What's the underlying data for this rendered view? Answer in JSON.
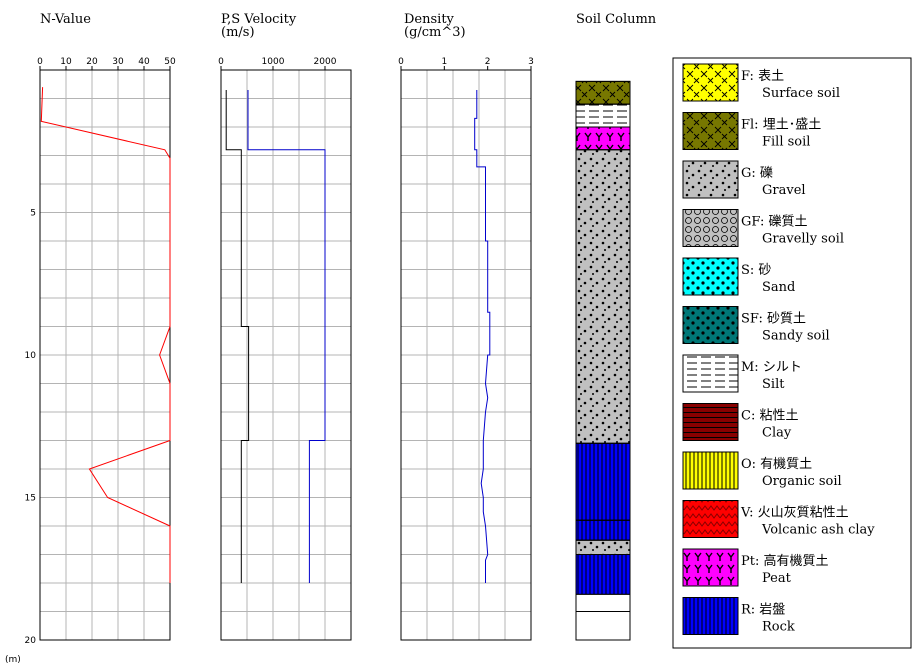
{
  "chart_data": {
    "type": "line",
    "depth_axis": {
      "ylim": [
        0,
        20
      ],
      "ticks": [
        "5",
        "10",
        "15",
        "20"
      ],
      "unit": "(m)"
    },
    "panels": [
      {
        "id": "nvalue",
        "title": [
          "N-Value"
        ],
        "xlim": [
          0,
          50
        ],
        "ticks": [
          "0",
          "10",
          "20",
          "30",
          "40",
          "50"
        ],
        "series": [
          {
            "color": "#ff0000",
            "points": [
              [
                1,
                0.6
              ],
              [
                0.5,
                1.8
              ],
              [
                48,
                2.8
              ],
              [
                50,
                3.1
              ],
              [
                50,
                9
              ],
              [
                46,
                10
              ],
              [
                50,
                11
              ],
              [
                50,
                13
              ],
              [
                19,
                14
              ],
              [
                26,
                15
              ],
              [
                50,
                16
              ],
              [
                50,
                18
              ]
            ]
          }
        ]
      },
      {
        "id": "velocity",
        "title": [
          "P,S Velocity",
          "(m/s)"
        ],
        "xlim": [
          0,
          2500
        ],
        "ticks": [
          "0",
          "1000",
          "2000"
        ],
        "series": [
          {
            "name_hidden": "Vs",
            "color": "#000000",
            "points": [
              [
                100,
                0.7
              ],
              [
                100,
                2.8
              ],
              [
                390,
                2.8
              ],
              [
                390,
                9
              ],
              [
                530,
                9
              ],
              [
                530,
                13
              ],
              [
                390,
                13
              ],
              [
                390,
                18
              ]
            ]
          },
          {
            "name_hidden": "Vp",
            "color": "#0000cc",
            "points": [
              [
                520,
                0.7
              ],
              [
                520,
                2.8
              ],
              [
                2000,
                2.8
              ],
              [
                2000,
                13
              ],
              [
                1700,
                13
              ],
              [
                1700,
                18
              ]
            ]
          }
        ]
      },
      {
        "id": "density",
        "title": [
          "Density",
          "(g/cm^3)"
        ],
        "xlim": [
          0,
          3
        ],
        "ticks": [
          "0",
          "1",
          "2",
          "3"
        ],
        "series": [
          {
            "color": "#0000cc",
            "points": [
              [
                1.75,
                0.7
              ],
              [
                1.75,
                1.7
              ],
              [
                1.7,
                1.7
              ],
              [
                1.7,
                2.8
              ],
              [
                1.75,
                2.8
              ],
              [
                1.75,
                3.4
              ],
              [
                1.95,
                3.4
              ],
              [
                1.95,
                4.5
              ],
              [
                1.95,
                6
              ],
              [
                2.0,
                6
              ],
              [
                2.0,
                8.5
              ],
              [
                2.05,
                8.5
              ],
              [
                2.05,
                9.5
              ],
              [
                2.05,
                10
              ],
              [
                2.0,
                10
              ],
              [
                1.95,
                11.0
              ],
              [
                2.0,
                11.5
              ],
              [
                1.95,
                12
              ],
              [
                1.9,
                13
              ],
              [
                1.9,
                14
              ],
              [
                1.85,
                14.5
              ],
              [
                1.9,
                15
              ],
              [
                1.9,
                15.5
              ],
              [
                1.95,
                16
              ],
              [
                2.0,
                17
              ],
              [
                1.95,
                17.2
              ],
              [
                1.95,
                18
              ]
            ]
          }
        ]
      }
    ],
    "soil_column": {
      "title": "Soil Column",
      "layers": [
        {
          "from": 0.4,
          "to": 1.2,
          "type": "Fl"
        },
        {
          "from": 1.2,
          "to": 2.0,
          "type": "M"
        },
        {
          "from": 2.0,
          "to": 2.8,
          "type": "Pt"
        },
        {
          "from": 2.8,
          "to": 13.1,
          "type": "G"
        },
        {
          "from": 13.1,
          "to": 15.8,
          "type": "R"
        },
        {
          "from": 15.8,
          "to": 16.5,
          "type": "R"
        },
        {
          "from": 16.5,
          "to": 17.0,
          "type": "G"
        },
        {
          "from": 17.0,
          "to": 18.4,
          "type": "R"
        },
        {
          "from": 18.4,
          "to": 19.0,
          "type": "blank"
        },
        {
          "from": 19.0,
          "to": 20.0,
          "type": "blank"
        }
      ]
    }
  },
  "legend": [
    {
      "code": "F",
      "pattern": "cross",
      "fill": "#ffff00",
      "fg": "#000000",
      "label_jp": "F: 表土",
      "label_en": "Surface soil"
    },
    {
      "code": "Fl",
      "pattern": "cross",
      "fill": "#777700",
      "fg": "#000000",
      "label_jp": "Fl: 埋土･盛土",
      "label_en": "Fill soil"
    },
    {
      "code": "G",
      "pattern": "dots",
      "fill": "#c0c0c0",
      "fg": "#000000",
      "label_jp": "G: 礫",
      "label_en": "Gravel"
    },
    {
      "code": "GF",
      "pattern": "circles",
      "fill": "#c0c0c0",
      "fg": "#000000",
      "label_jp": "GF: 礫質土",
      "label_en": "Gravelly soil"
    },
    {
      "code": "S",
      "pattern": "bigdots",
      "fill": "#00ffff",
      "fg": "#000000",
      "label_jp": "S: 砂",
      "label_en": "Sand"
    },
    {
      "code": "SF",
      "pattern": "bigdots",
      "fill": "#007777",
      "fg": "#000000",
      "label_jp": "SF: 砂質土",
      "label_en": "Sandy soil"
    },
    {
      "code": "M",
      "pattern": "dashes",
      "fill": "#ffffff",
      "fg": "#000000",
      "label_jp": "M: シルト",
      "label_en": "Silt"
    },
    {
      "code": "C",
      "pattern": "hlines",
      "fill": "#880000",
      "fg": "#000000",
      "label_jp": "C: 粘性土",
      "label_en": "Clay"
    },
    {
      "code": "O",
      "pattern": "vlines",
      "fill": "#ffff00",
      "fg": "#000000",
      "label_jp": "O: 有機質土",
      "label_en": "Organic soil"
    },
    {
      "code": "V",
      "pattern": "zigzag",
      "fill": "#ff0000",
      "fg": "#880000",
      "label_jp": "V: 火山灰質粘性土",
      "label_en": "Volcanic ash clay"
    },
    {
      "code": "Pt",
      "pattern": "yy",
      "fill": "#ff00ff",
      "fg": "#000000",
      "label_jp": "Pt: 高有機質土",
      "label_en": "Peat"
    },
    {
      "code": "R",
      "pattern": "vlines",
      "fill": "#0000ff",
      "fg": "#000000",
      "label_jp": "R: 岩盤",
      "label_en": "Rock"
    }
  ]
}
